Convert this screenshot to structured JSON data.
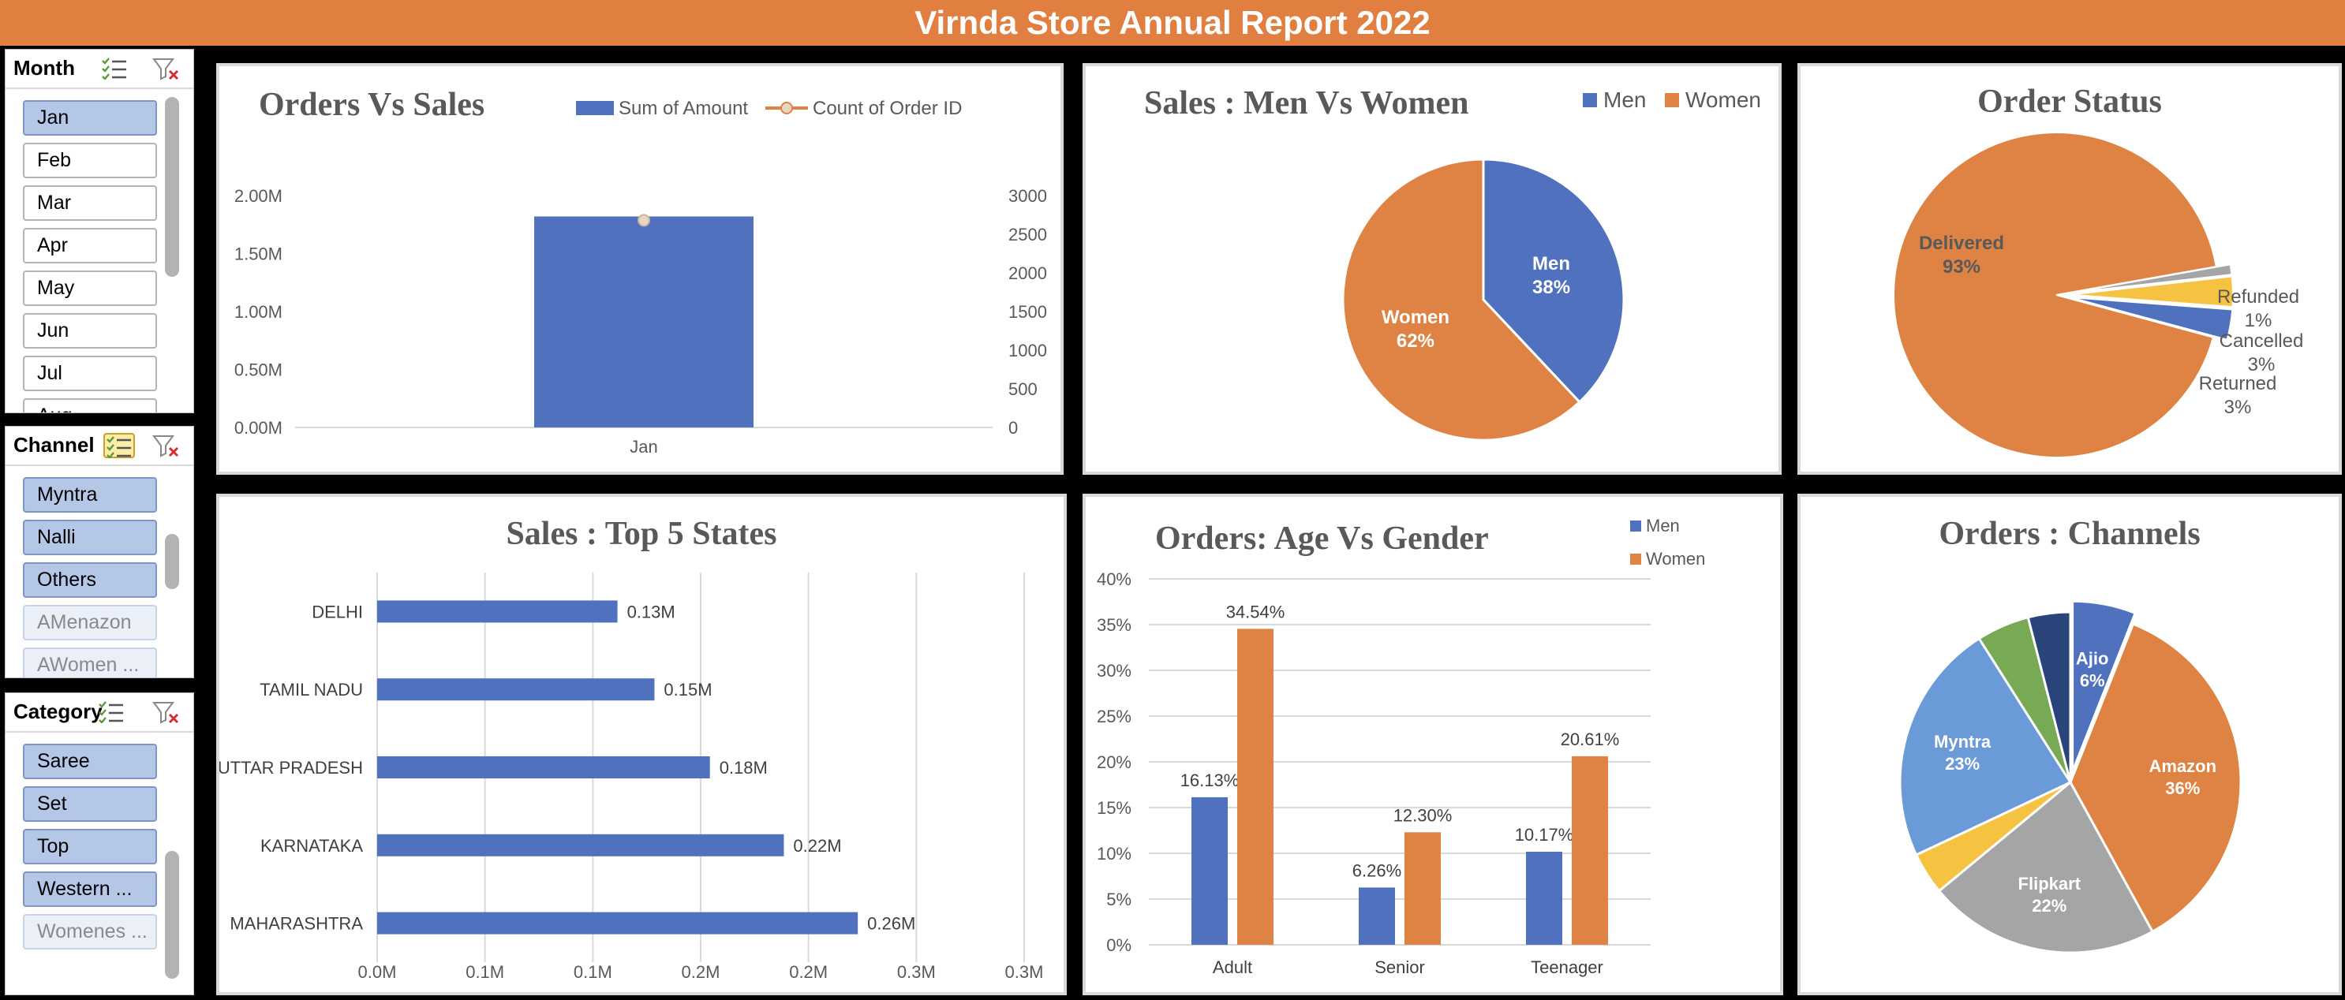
{
  "report": {
    "title": "Virnda Store Annual Report 2022"
  },
  "slicers": {
    "month": {
      "title": "Month",
      "items": [
        "Jan",
        "Feb",
        "Mar",
        "Apr",
        "May",
        "Jun",
        "Jul",
        "Aug"
      ],
      "selected": [
        "Jan"
      ]
    },
    "channel": {
      "title": "Channel",
      "items": [
        "Myntra",
        "Nalli",
        "Others",
        "AMenazon",
        "AWomen ..."
      ],
      "selected": [
        "Myntra",
        "Nalli",
        "Others"
      ],
      "dimmed": [
        "AMenazon",
        "AWomen ..."
      ]
    },
    "category": {
      "title": "Category",
      "items": [
        "Saree",
        "Set",
        "Top",
        "Western ...",
        "Womenes ..."
      ],
      "selected": [
        "Saree",
        "Set",
        "Top",
        "Western ..."
      ],
      "dimmed": [
        "Womenes ..."
      ]
    }
  },
  "colors": {
    "blue": "#4F71BE",
    "orange": "#DE8344",
    "gray": "#A5A5A5",
    "yellow": "#F6C242",
    "lightblue": "#6A9BD8",
    "green": "#78A954",
    "navy": "#284479",
    "banner": "#E07F3F"
  },
  "chart_data": [
    {
      "id": "orders-vs-sales",
      "type": "bar",
      "title": "Orders Vs Sales",
      "categories": [
        "Jan"
      ],
      "series": [
        {
          "name": "Sum of Amount",
          "type": "bar",
          "axis": "left",
          "values": [
            1820000
          ]
        },
        {
          "name": "Count of Order ID",
          "type": "line",
          "axis": "right",
          "values": [
            2680
          ]
        }
      ],
      "y_left": {
        "lim": [
          0,
          2000000
        ],
        "ticks": [
          "0.00M",
          "0.50M",
          "1.00M",
          "1.50M",
          "2.00M"
        ]
      },
      "y_right": {
        "lim": [
          0,
          3000
        ],
        "ticks": [
          "0",
          "500",
          "1000",
          "1500",
          "2000",
          "2500",
          "3000"
        ]
      },
      "legend": "top"
    },
    {
      "id": "sales-men-women",
      "type": "pie",
      "title": "Sales : Men Vs Women",
      "labels": [
        "Men",
        "Women"
      ],
      "values": [
        38,
        62
      ],
      "data_labels": [
        "38%",
        "62%"
      ],
      "legend": "top-right"
    },
    {
      "id": "order-status",
      "type": "pie",
      "title": "Order Status",
      "labels": [
        "Delivered",
        "Refunded",
        "Cancelled",
        "Returned"
      ],
      "values": [
        93,
        1,
        3,
        3
      ],
      "data_labels": [
        "93%",
        "1%",
        "3%",
        "3%"
      ]
    },
    {
      "id": "top-5-states",
      "type": "bar",
      "orientation": "horizontal",
      "title": "Sales : Top 5 States",
      "categories": [
        "DELHI",
        "TAMIL NADU",
        "UTTAR PRADESH",
        "KARNATAKA",
        "MAHARASHTRA"
      ],
      "values": [
        0.13,
        0.15,
        0.18,
        0.22,
        0.26
      ],
      "data_labels": [
        "0.13M",
        "0.15M",
        "0.18M",
        "0.22M",
        "0.26M"
      ],
      "xlim": [
        0,
        0.3
      ],
      "x_ticks": [
        "0.0M",
        "0.1M",
        "0.1M",
        "0.2M",
        "0.2M",
        "0.3M",
        "0.3M"
      ]
    },
    {
      "id": "age-vs-gender",
      "type": "bar",
      "title": "Orders: Age Vs Gender",
      "categories": [
        "Adult",
        "Senior",
        "Teenager"
      ],
      "series": [
        {
          "name": "Men",
          "values": [
            16.13,
            6.26,
            10.17
          ],
          "data_labels": [
            "16.13%",
            "6.26%",
            "10.17%"
          ]
        },
        {
          "name": "Women",
          "values": [
            34.54,
            12.3,
            20.61
          ],
          "data_labels": [
            "34.54%",
            "12.30%",
            "20.61%"
          ]
        }
      ],
      "ylim": [
        0,
        40
      ],
      "y_ticks": [
        "0%",
        "5%",
        "10%",
        "15%",
        "20%",
        "25%",
        "30%",
        "35%",
        "40%"
      ],
      "legend": "top-right"
    },
    {
      "id": "orders-channels",
      "type": "pie",
      "title": "Orders : Channels",
      "labels": [
        "Ajio",
        "Amazon",
        "Flipkart",
        "",
        "Myntra",
        "",
        ""
      ],
      "values": [
        6,
        36,
        22,
        4,
        23,
        5,
        4
      ],
      "data_labels": [
        "6%",
        "36%",
        "22%",
        "",
        "23%",
        "",
        ""
      ]
    }
  ]
}
